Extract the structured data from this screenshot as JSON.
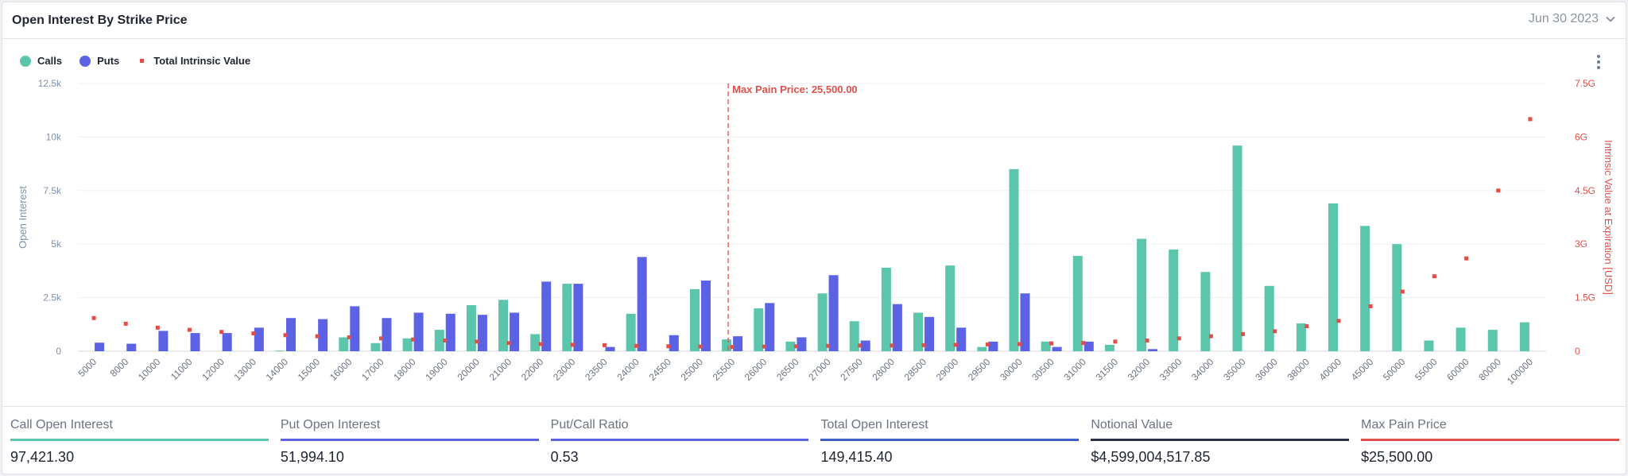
{
  "header": {
    "title": "Open Interest By Strike Price",
    "date": "Jun 30 2023"
  },
  "legend": [
    {
      "label": "Calls",
      "color": "#5cc6ad"
    },
    {
      "label": "Puts",
      "color": "#5b63e4"
    },
    {
      "label": "Total Intrinsic Value",
      "color": "#e0504a"
    }
  ],
  "icons": {
    "chevron": "chevron-down-icon",
    "menu": "more-vertical-icon"
  },
  "chart_data": {
    "type": "bar",
    "ylabel": "Open Interest",
    "y2label": "Intrinsic Value at Expiration [USD]",
    "ylim": [
      0,
      12500
    ],
    "y2lim": [
      0,
      7.5
    ],
    "yticks": [
      "0",
      "2.5k",
      "5k",
      "7.5k",
      "10k",
      "12.5k"
    ],
    "y2ticks": [
      "0",
      "1.5G",
      "3G",
      "4.5G",
      "6G",
      "7.5G"
    ],
    "categories": [
      "5000",
      "8000",
      "10000",
      "11000",
      "12000",
      "13000",
      "14000",
      "15000",
      "16000",
      "17000",
      "18000",
      "19000",
      "20000",
      "21000",
      "22000",
      "23000",
      "23500",
      "24000",
      "24500",
      "25000",
      "25500",
      "26000",
      "26500",
      "27000",
      "27500",
      "28000",
      "28500",
      "29000",
      "29500",
      "30000",
      "30500",
      "31000",
      "31500",
      "32000",
      "33000",
      "34000",
      "35000",
      "36000",
      "38000",
      "40000",
      "45000",
      "50000",
      "55000",
      "60000",
      "80000",
      "100000"
    ],
    "series": [
      {
        "name": "Calls",
        "values": [
          0,
          0,
          0,
          0,
          0,
          0,
          30,
          0,
          650,
          380,
          600,
          1000,
          2150,
          2400,
          800,
          3150,
          0,
          1750,
          0,
          2900,
          550,
          2000,
          450,
          2700,
          1400,
          3900,
          1800,
          4000,
          200,
          8500,
          450,
          4450,
          300,
          5250,
          4750,
          3700,
          9600,
          3050,
          1300,
          6900,
          5850,
          5000,
          500,
          1100,
          1000,
          1350
        ]
      },
      {
        "name": "Puts",
        "values": [
          400,
          350,
          950,
          850,
          850,
          1100,
          1550,
          1500,
          2100,
          1550,
          1800,
          1750,
          1700,
          1800,
          3250,
          3150,
          200,
          4400,
          750,
          3300,
          700,
          2250,
          650,
          3550,
          500,
          2200,
          1600,
          1100,
          450,
          2700,
          200,
          450,
          0,
          100,
          0,
          0,
          0,
          0,
          0,
          0,
          0,
          0,
          0,
          0,
          0,
          0
        ]
      },
      {
        "name": "Total Intrinsic Value",
        "values": [
          0.93,
          0.77,
          0.66,
          0.6,
          0.54,
          0.5,
          0.45,
          0.42,
          0.39,
          0.36,
          0.33,
          0.3,
          0.27,
          0.23,
          0.2,
          0.18,
          0.17,
          0.15,
          0.14,
          0.13,
          0.12,
          0.13,
          0.14,
          0.15,
          0.16,
          0.16,
          0.17,
          0.18,
          0.19,
          0.2,
          0.22,
          0.23,
          0.27,
          0.3,
          0.36,
          0.42,
          0.48,
          0.56,
          0.7,
          0.85,
          1.26,
          1.67,
          2.1,
          2.6,
          4.5,
          6.5
        ]
      }
    ],
    "annotation": {
      "label": "Max Pain Price: 25,500.00",
      "category": "25500"
    },
    "colors": {
      "calls": "#5cc6ad",
      "puts": "#5b63e4",
      "intrinsic": "#e0504a",
      "axis_left": "#7f92ac",
      "axis_right": "#e0504a"
    }
  },
  "stats": [
    {
      "label": "Call Open Interest",
      "value": "97,421.30",
      "color": "#5cc6ad"
    },
    {
      "label": "Put Open Interest",
      "value": "51,994.10",
      "color": "#5b63e4"
    },
    {
      "label": "Put/Call Ratio",
      "value": "0.53",
      "color": "#5b63e4"
    },
    {
      "label": "Total Open Interest",
      "value": "149,415.40",
      "color": "#3f5fc4"
    },
    {
      "label": "Notional Value",
      "value": "$4,599,004,517.85",
      "color": "#2a3140"
    },
    {
      "label": "Max Pain Price",
      "value": "$25,500.00",
      "color": "#e0504a"
    }
  ]
}
